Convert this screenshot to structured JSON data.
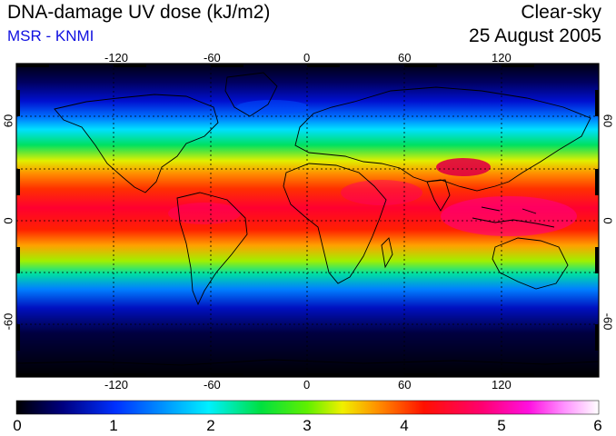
{
  "header": {
    "title": "DNA-damage UV dose (kJ/m2)",
    "source": "MSR - KNMI",
    "sky_condition": "Clear-sky",
    "date": "25 August 2005"
  },
  "map": {
    "projection": "equirectangular",
    "lon_ticks": [
      "-120",
      "-60",
      "0",
      "60",
      "120"
    ],
    "lat_ticks": [
      "60",
      "0",
      "-60"
    ],
    "grid": "dotted, every 30 degrees"
  },
  "colorbar": {
    "min": 0,
    "max": 6,
    "labels": [
      "0",
      "1",
      "2",
      "3",
      "4",
      "5",
      "6"
    ],
    "colors": [
      "#000000",
      "#0000a0",
      "#0050ff",
      "#00e6ff",
      "#00e040",
      "#f0f000",
      "#ff7000",
      "#ff0000",
      "#ff0090",
      "#ff40ff",
      "#ffffff"
    ]
  },
  "chart_data": {
    "type": "heatmap",
    "title": "DNA-damage UV dose (kJ/m2)",
    "variable": "DNA-damage UV dose",
    "units": "kJ/m2",
    "sky_condition": "Clear-sky",
    "date": "25 August 2005",
    "value_range": [
      0,
      6
    ],
    "x_axis": "longitude",
    "y_axis": "latitude",
    "lat_band_profile": {
      "lat": [
        75,
        60,
        45,
        30,
        15,
        0,
        -15,
        -30,
        -45,
        -60,
        -75
      ],
      "value": [
        0.6,
        1.4,
        2.6,
        3.9,
        4.4,
        4.0,
        3.2,
        2.0,
        0.9,
        0.2,
        0.0
      ]
    }
  }
}
